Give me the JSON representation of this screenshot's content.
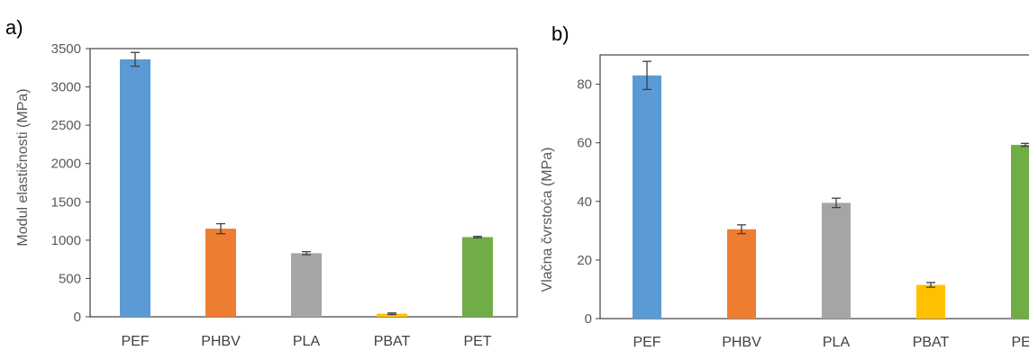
{
  "chart_data": [
    {
      "type": "bar",
      "panel_label": "a)",
      "title": "",
      "xlabel": "",
      "ylabel": "Modul elastičnosti (MPa)",
      "categories": [
        "PEF",
        "PHBV",
        "PLA",
        "PBAT",
        "PET"
      ],
      "values": [
        3360,
        1150,
        830,
        40,
        1040
      ],
      "errors": [
        90,
        65,
        20,
        10,
        10
      ],
      "colors": [
        "#5b9bd5",
        "#ed7d31",
        "#a5a5a5",
        "#ffc000",
        "#70ad47"
      ],
      "ylim": [
        0,
        3500
      ],
      "yticks": [
        "0",
        "500",
        "1000",
        "1500",
        "2000",
        "2500",
        "3000",
        "3500"
      ],
      "grid": false,
      "legend": "none"
    },
    {
      "type": "bar",
      "panel_label": "b)",
      "title": "",
      "xlabel": "",
      "ylabel": "Vlačna čvrstoća (MPa)",
      "categories": [
        "PEF",
        "PHBV",
        "PLA",
        "PBAT",
        "PET"
      ],
      "values": [
        83,
        30.5,
        39.5,
        11.5,
        59.3
      ],
      "errors": [
        4.8,
        1.5,
        1.6,
        0.8,
        0.5
      ],
      "colors": [
        "#5b9bd5",
        "#ed7d31",
        "#a5a5a5",
        "#ffc000",
        "#70ad47"
      ],
      "ylim": [
        0,
        90
      ],
      "yticks": [
        "0",
        "20",
        "40",
        "60",
        "80"
      ],
      "grid": false,
      "legend": "none"
    }
  ]
}
